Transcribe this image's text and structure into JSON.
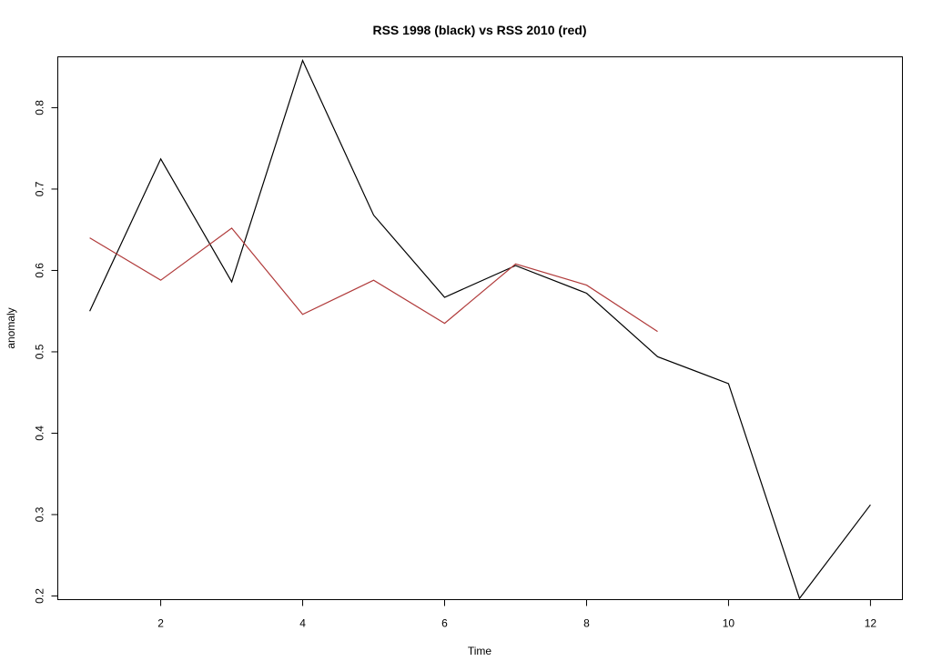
{
  "chart_data": {
    "type": "line",
    "title": "RSS 1998 (black) vs RSS 2010 (red)",
    "xlabel": "Time",
    "ylabel": "anomaly",
    "xlim": [
      0.55,
      12.45
    ],
    "ylim": [
      0.1955,
      0.8625
    ],
    "x_ticks": [
      2,
      4,
      6,
      8,
      10,
      12
    ],
    "y_ticks": [
      0.2,
      0.3,
      0.4,
      0.5,
      0.6,
      0.7,
      0.8
    ],
    "grid": false,
    "legend": "none",
    "series": [
      {
        "color": "#000000",
        "x": [
          1,
          2,
          3,
          4,
          5,
          6,
          7,
          8,
          9,
          10,
          11,
          12
        ],
        "values": [
          0.55,
          0.737,
          0.586,
          0.858,
          0.668,
          0.567,
          0.606,
          0.572,
          0.494,
          0.461,
          0.197,
          0.312
        ]
      },
      {
        "color": "#b03a3a",
        "x": [
          1,
          2,
          3,
          4,
          5,
          6,
          7,
          8,
          9
        ],
        "values": [
          0.64,
          0.588,
          0.652,
          0.546,
          0.588,
          0.535,
          0.608,
          0.582,
          0.525
        ]
      }
    ]
  }
}
